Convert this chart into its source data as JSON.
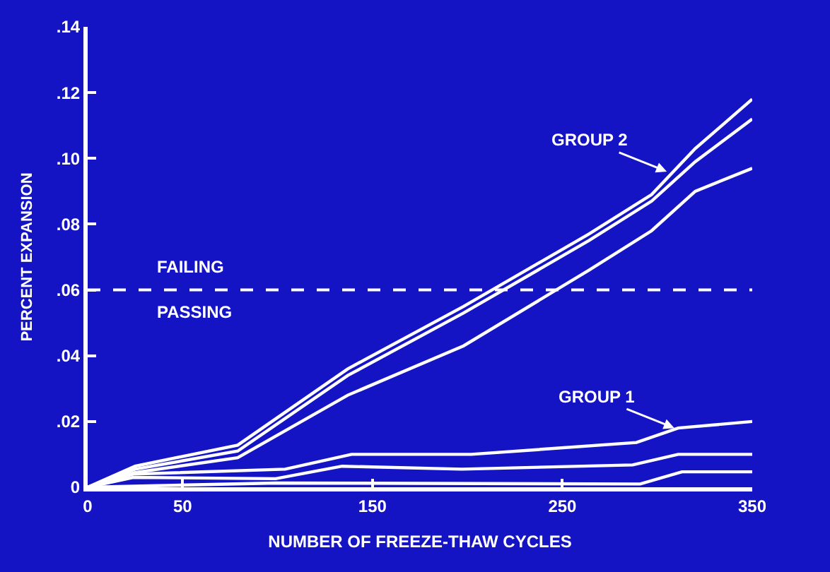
{
  "chart_data": {
    "type": "line",
    "xlabel": "NUMBER OF FREEZE-THAW CYCLES",
    "ylabel": "PERCENT EXPANSION",
    "xlim": [
      0,
      350
    ],
    "xticks": [
      0,
      50,
      150,
      250,
      350
    ],
    "ylim": [
      0,
      0.14
    ],
    "yticks": [
      {
        "value": 0,
        "label": "0"
      },
      {
        "value": 0.02,
        "label": ".02"
      },
      {
        "value": 0.04,
        "label": ".04"
      },
      {
        "value": 0.06,
        "label": ".06"
      },
      {
        "value": 0.08,
        "label": ".08"
      },
      {
        "value": 0.1,
        "label": ".10"
      },
      {
        "value": 0.12,
        "label": ".12"
      },
      {
        "value": 0.14,
        "label": ".14"
      }
    ],
    "grid": false,
    "marker": "none",
    "line_style": "solid",
    "series": [
      {
        "color": "#ffffff",
        "x": [
          0,
          25,
          79,
          137,
          198,
          264,
          297,
          320,
          350
        ],
        "values": [
          0,
          0.0064,
          0.0128,
          0.036,
          0.055,
          0.077,
          0.089,
          0.103,
          0.118
        ]
      },
      {
        "color": "#ffffff",
        "x": [
          0,
          25,
          79,
          137,
          198,
          264,
          297,
          320,
          350
        ],
        "values": [
          0,
          0.0055,
          0.011,
          0.034,
          0.053,
          0.075,
          0.087,
          0.099,
          0.112
        ]
      },
      {
        "color": "#ffffff",
        "x": [
          0,
          25,
          79,
          137,
          198,
          264,
          297,
          320,
          350
        ],
        "values": [
          0,
          0.0045,
          0.009,
          0.028,
          0.043,
          0.066,
          0.078,
          0.09,
          0.097
        ]
      },
      {
        "color": "#ffffff",
        "x": [
          0,
          24,
          104,
          139,
          202,
          289,
          311,
          350
        ],
        "values": [
          0,
          0.004,
          0.0055,
          0.01,
          0.01,
          0.0136,
          0.018,
          0.02
        ]
      },
      {
        "color": "#ffffff",
        "x": [
          0,
          24,
          99,
          134,
          197,
          287,
          311,
          350
        ],
        "values": [
          0,
          0.003,
          0.0026,
          0.0064,
          0.0055,
          0.0068,
          0.01,
          0.01
        ]
      },
      {
        "color": "#ffffff",
        "x": [
          0,
          99,
          291,
          313,
          350
        ],
        "values": [
          0,
          0.0013,
          0.001,
          0.0047,
          0.0047
        ]
      }
    ],
    "ref_lines": [
      {
        "axis": "y",
        "value": 0.06,
        "color": "#ffffff",
        "line_style": "dashed"
      }
    ],
    "annotations": [
      "FAILING",
      "PASSING",
      {
        "text": "GROUP 2",
        "x": 305,
        "y": 0.096
      },
      {
        "text": "GROUP 1",
        "x": 309,
        "y": 0.018
      }
    ]
  }
}
